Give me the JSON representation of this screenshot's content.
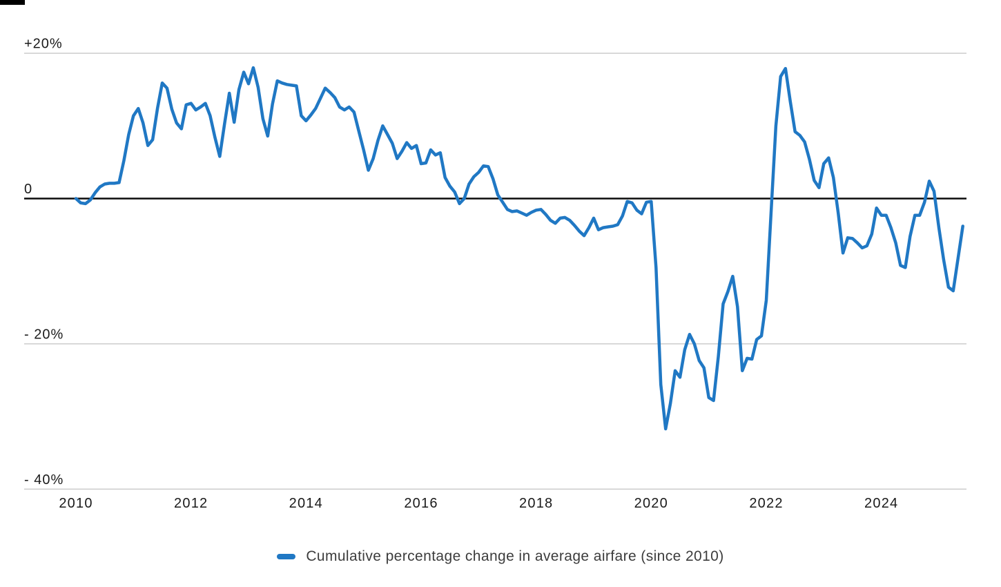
{
  "chart_data": {
    "type": "line",
    "title": "",
    "legend": {
      "label": "Cumulative percentage change in average airfare (since 2010)"
    },
    "line_color": "#2078c4",
    "grid": "horizontal",
    "legend_position": "bottom-center",
    "y_axis": {
      "unit": "percent",
      "ticks": [
        {
          "label": "+20%",
          "value": 20
        },
        {
          "label": "0",
          "value": 0
        },
        {
          "label": "- 20%",
          "value": -20
        },
        {
          "label": "- 40%",
          "value": -40
        }
      ],
      "ylim": [
        -45,
        24
      ]
    },
    "x_axis": {
      "ticks": [
        {
          "label": "2010",
          "year": 2010
        },
        {
          "label": "2012",
          "year": 2012
        },
        {
          "label": "2014",
          "year": 2014
        },
        {
          "label": "2016",
          "year": 2016
        },
        {
          "label": "2018",
          "year": 2018
        },
        {
          "label": "2020",
          "year": 2020
        },
        {
          "label": "2022",
          "year": 2022
        },
        {
          "label": "2024",
          "year": 2024
        }
      ]
    },
    "series": [
      {
        "name": "Cumulative percentage change in average airfare (since 2010)",
        "start": "2010-01",
        "frequency": "monthly",
        "unit": "percent",
        "values": [
          0,
          -0.6,
          -0.7,
          -0.2,
          0.8,
          1.6,
          2,
          2.1,
          2.1,
          2.2,
          5.2,
          8.8,
          11.4,
          12.4,
          10.4,
          7.3,
          8.1,
          12.4,
          15.9,
          15.2,
          12.3,
          10.4,
          9.6,
          12.9,
          13.1,
          12.2,
          12.6,
          13.1,
          11.4,
          8.4,
          5.8,
          10.3,
          14.5,
          10.5,
          15,
          17.4,
          15.8,
          18,
          15.3,
          11,
          8.6,
          13,
          16.2,
          15.9,
          15.7,
          15.6,
          15.5,
          11.4,
          10.7,
          11.5,
          12.4,
          13.8,
          15.2,
          14.6,
          13.9,
          12.6,
          12.2,
          12.6,
          11.9,
          9.3,
          6.7,
          3.9,
          5.5,
          8,
          10,
          8.8,
          7.6,
          5.5,
          6.5,
          7.7,
          6.9,
          7.3,
          4.8,
          4.9,
          6.7,
          6,
          6.3,
          2.9,
          1.7,
          0.9,
          -0.7,
          0,
          2,
          3,
          3.6,
          4.5,
          4.4,
          2.7,
          0.5,
          -0.5,
          -1.5,
          -1.8,
          -1.7,
          -2,
          -2.3,
          -1.9,
          -1.6,
          -1.5,
          -2.2,
          -3,
          -3.4,
          -2.7,
          -2.6,
          -3,
          -3.7,
          -4.5,
          -5.1,
          -4,
          -2.7,
          -4.3,
          -4,
          -3.9,
          -3.8,
          -3.6,
          -2.4,
          -0.4,
          -0.6,
          -1.6,
          -2.1,
          -0.5,
          -0.4,
          -9.5,
          -25.6,
          -31.7,
          -28.2,
          -23.7,
          -24.6,
          -20.8,
          -18.7,
          -20,
          -22.3,
          -23.3,
          -27.4,
          -27.8,
          -21.8,
          -14.5,
          -12.8,
          -10.7,
          -14.9,
          -23.7,
          -22,
          -22.1,
          -19.4,
          -18.9,
          -14,
          -2,
          10,
          16.8,
          17.9,
          13.4,
          9.2,
          8.7,
          7.8,
          5.4,
          2.5,
          1.5,
          4.8,
          5.6,
          2.9,
          -2,
          -7.5,
          -5.4,
          -5.5,
          -6.1,
          -6.8,
          -6.5,
          -4.9,
          -1.3,
          -2.3,
          -2.3,
          -4,
          -6.1,
          -9.2,
          -9.5,
          -5.2,
          -2.3,
          -2.3,
          -0.5,
          2.4,
          1,
          -4,
          -8.4,
          -12.2,
          -12.7,
          -8.2,
          -3.8
        ]
      }
    ]
  }
}
